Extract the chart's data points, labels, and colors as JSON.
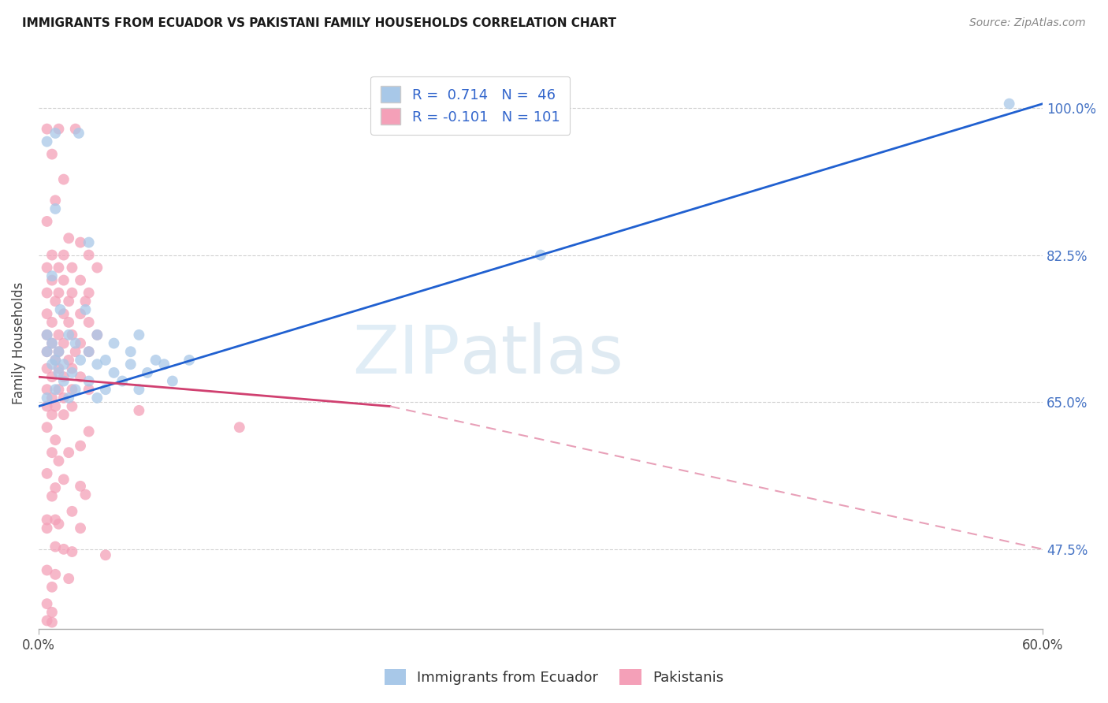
{
  "title": "IMMIGRANTS FROM ECUADOR VS PAKISTANI FAMILY HOUSEHOLDS CORRELATION CHART",
  "source": "Source: ZipAtlas.com",
  "ylabel": "Family Households",
  "ytick_labels": [
    "100.0%",
    "82.5%",
    "65.0%",
    "47.5%"
  ],
  "ytick_values": [
    1.0,
    0.825,
    0.65,
    0.475
  ],
  "legend_labels": [
    "Immigrants from Ecuador",
    "Pakistanis"
  ],
  "ecuador_color": "#a8c8e8",
  "pakistan_color": "#f4a0b8",
  "ecuador_line_color": "#2060d0",
  "pakistan_line_color": "#d04070",
  "pakistan_line_dashed_color": "#e8a0b8",
  "watermark_zip": "ZIP",
  "watermark_atlas": "atlas",
  "xlim": [
    0.0,
    0.6
  ],
  "ylim": [
    0.38,
    1.06
  ],
  "ecuador_line": [
    [
      0.0,
      0.645
    ],
    [
      0.6,
      1.005
    ]
  ],
  "pakistan_line_solid": [
    [
      0.0,
      0.68
    ],
    [
      0.21,
      0.645
    ]
  ],
  "pakistan_line_dashed": [
    [
      0.21,
      0.645
    ],
    [
      0.6,
      0.475
    ]
  ],
  "ecuador_scatter": [
    [
      0.005,
      0.96
    ],
    [
      0.01,
      0.97
    ],
    [
      0.024,
      0.97
    ],
    [
      0.01,
      0.88
    ],
    [
      0.03,
      0.84
    ],
    [
      0.008,
      0.8
    ],
    [
      0.013,
      0.76
    ],
    [
      0.028,
      0.76
    ],
    [
      0.005,
      0.73
    ],
    [
      0.018,
      0.73
    ],
    [
      0.035,
      0.73
    ],
    [
      0.06,
      0.73
    ],
    [
      0.008,
      0.72
    ],
    [
      0.022,
      0.72
    ],
    [
      0.045,
      0.72
    ],
    [
      0.005,
      0.71
    ],
    [
      0.012,
      0.71
    ],
    [
      0.03,
      0.71
    ],
    [
      0.055,
      0.71
    ],
    [
      0.01,
      0.7
    ],
    [
      0.025,
      0.7
    ],
    [
      0.04,
      0.7
    ],
    [
      0.07,
      0.7
    ],
    [
      0.09,
      0.7
    ],
    [
      0.008,
      0.695
    ],
    [
      0.015,
      0.695
    ],
    [
      0.035,
      0.695
    ],
    [
      0.055,
      0.695
    ],
    [
      0.075,
      0.695
    ],
    [
      0.012,
      0.685
    ],
    [
      0.02,
      0.685
    ],
    [
      0.045,
      0.685
    ],
    [
      0.065,
      0.685
    ],
    [
      0.015,
      0.675
    ],
    [
      0.03,
      0.675
    ],
    [
      0.05,
      0.675
    ],
    [
      0.08,
      0.675
    ],
    [
      0.01,
      0.665
    ],
    [
      0.022,
      0.665
    ],
    [
      0.04,
      0.665
    ],
    [
      0.06,
      0.665
    ],
    [
      0.005,
      0.655
    ],
    [
      0.018,
      0.655
    ],
    [
      0.035,
      0.655
    ],
    [
      0.3,
      0.825
    ],
    [
      0.58,
      1.005
    ]
  ],
  "pakistan_scatter": [
    [
      0.005,
      0.975
    ],
    [
      0.012,
      0.975
    ],
    [
      0.022,
      0.975
    ],
    [
      0.008,
      0.945
    ],
    [
      0.015,
      0.915
    ],
    [
      0.01,
      0.89
    ],
    [
      0.005,
      0.865
    ],
    [
      0.018,
      0.845
    ],
    [
      0.025,
      0.84
    ],
    [
      0.008,
      0.825
    ],
    [
      0.015,
      0.825
    ],
    [
      0.03,
      0.825
    ],
    [
      0.005,
      0.81
    ],
    [
      0.012,
      0.81
    ],
    [
      0.02,
      0.81
    ],
    [
      0.035,
      0.81
    ],
    [
      0.008,
      0.795
    ],
    [
      0.015,
      0.795
    ],
    [
      0.025,
      0.795
    ],
    [
      0.005,
      0.78
    ],
    [
      0.012,
      0.78
    ],
    [
      0.02,
      0.78
    ],
    [
      0.03,
      0.78
    ],
    [
      0.01,
      0.77
    ],
    [
      0.018,
      0.77
    ],
    [
      0.028,
      0.77
    ],
    [
      0.005,
      0.755
    ],
    [
      0.015,
      0.755
    ],
    [
      0.025,
      0.755
    ],
    [
      0.008,
      0.745
    ],
    [
      0.018,
      0.745
    ],
    [
      0.03,
      0.745
    ],
    [
      0.005,
      0.73
    ],
    [
      0.012,
      0.73
    ],
    [
      0.02,
      0.73
    ],
    [
      0.035,
      0.73
    ],
    [
      0.008,
      0.72
    ],
    [
      0.015,
      0.72
    ],
    [
      0.025,
      0.72
    ],
    [
      0.005,
      0.71
    ],
    [
      0.012,
      0.71
    ],
    [
      0.022,
      0.71
    ],
    [
      0.03,
      0.71
    ],
    [
      0.01,
      0.7
    ],
    [
      0.018,
      0.7
    ],
    [
      0.005,
      0.69
    ],
    [
      0.012,
      0.69
    ],
    [
      0.02,
      0.69
    ],
    [
      0.008,
      0.68
    ],
    [
      0.015,
      0.68
    ],
    [
      0.025,
      0.68
    ],
    [
      0.005,
      0.665
    ],
    [
      0.012,
      0.665
    ],
    [
      0.02,
      0.665
    ],
    [
      0.03,
      0.665
    ],
    [
      0.008,
      0.655
    ],
    [
      0.015,
      0.655
    ],
    [
      0.005,
      0.645
    ],
    [
      0.01,
      0.645
    ],
    [
      0.02,
      0.645
    ],
    [
      0.008,
      0.635
    ],
    [
      0.015,
      0.635
    ],
    [
      0.005,
      0.62
    ],
    [
      0.03,
      0.615
    ],
    [
      0.01,
      0.605
    ],
    [
      0.025,
      0.598
    ],
    [
      0.008,
      0.59
    ],
    [
      0.018,
      0.59
    ],
    [
      0.012,
      0.58
    ],
    [
      0.005,
      0.565
    ],
    [
      0.015,
      0.558
    ],
    [
      0.01,
      0.548
    ],
    [
      0.008,
      0.538
    ],
    [
      0.06,
      0.64
    ],
    [
      0.12,
      0.62
    ],
    [
      0.005,
      0.51
    ],
    [
      0.012,
      0.505
    ],
    [
      0.02,
      0.52
    ],
    [
      0.01,
      0.478
    ],
    [
      0.015,
      0.475
    ],
    [
      0.02,
      0.472
    ],
    [
      0.04,
      0.468
    ],
    [
      0.025,
      0.55
    ],
    [
      0.028,
      0.54
    ],
    [
      0.005,
      0.45
    ],
    [
      0.01,
      0.445
    ],
    [
      0.018,
      0.44
    ],
    [
      0.008,
      0.43
    ],
    [
      0.005,
      0.41
    ],
    [
      0.008,
      0.4
    ],
    [
      0.005,
      0.39
    ],
    [
      0.008,
      0.388
    ],
    [
      0.01,
      0.51
    ],
    [
      0.005,
      0.5
    ],
    [
      0.025,
      0.5
    ]
  ]
}
